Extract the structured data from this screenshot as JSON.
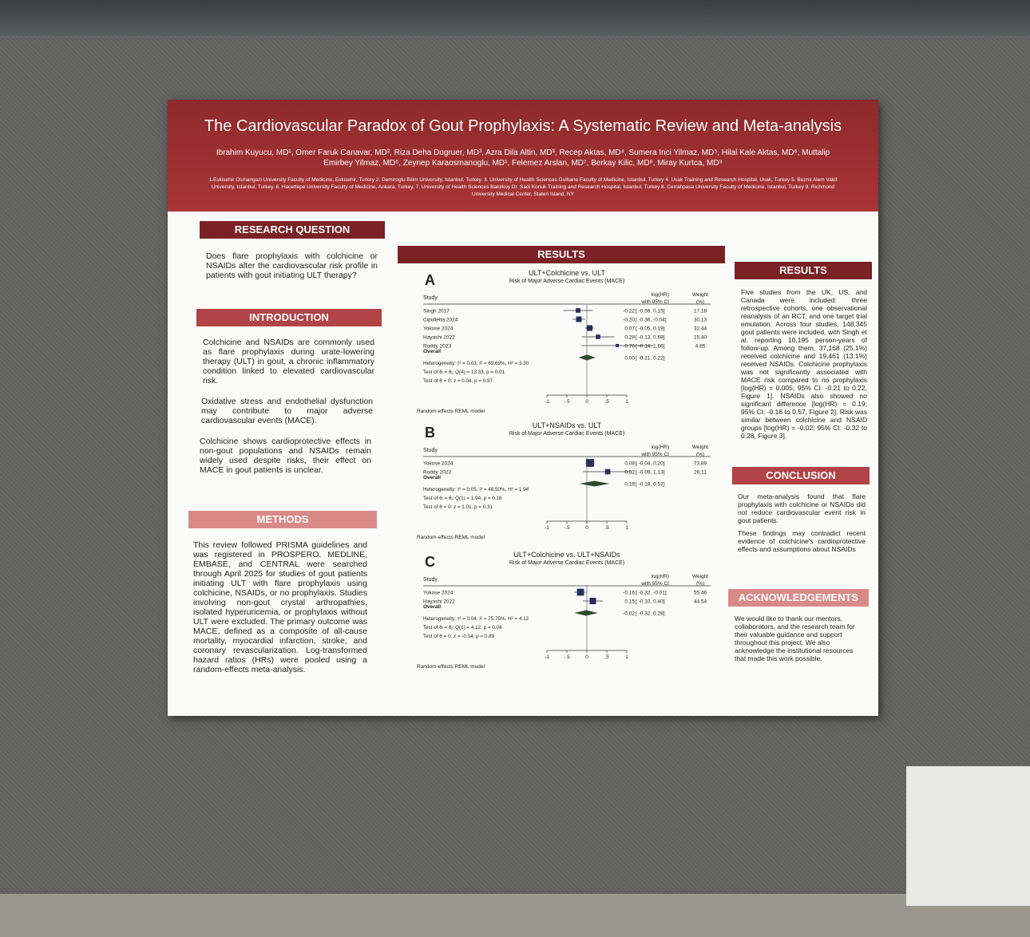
{
  "header": {
    "title": "The Cardiovascular Paradox of Gout Prophylaxis: A Systematic Review and Meta-analysis",
    "authors": "Ibrahim Kuyucu, MD¹, Omer Faruk Canavar, MD², Riza Deha Dogruer, MD³, Azra Dila Altin, MD³, Recep Aktas, MD⁴, Sumera Inci Yilmaz, MD⁵, Hilal Kale Aktas, MD⁶, Muttalip Emirbey Yilmaz, MD⁶, Zeynep Karaosmanoglu, MD¹, Felemez Arslan, MD⁷, Berkay Kilic, MD⁸, Miray Kurtca, MD⁹",
    "affiliations": "1.Eskisehir Osmangazi University Faculty of Medicine, Eskisehir, Turkey 2. Demiroglu Bilim University, Istanbul, Turkey. 3. University of Health Sciences Gulhane Faculty of Medicine, Istanbul, Turkey 4. Usak Training and Research Hospital, Usak, Turkey 5. Bezmi Alem Vakif University, Istanbul, Turkey. 6. Hacettepe University Faculty of Medicine, Ankara, Turkey. 7. University of Health Sciences Bakirkoy Dr. Sadi Konuk Training and Research Hospital, Istanbul, Turkey 8. Cerrahpasa University Faculty of Medicine, Istanbul, Turkey 9. Richmond University Medical Center, Staten Island, NY"
  },
  "research_question": {
    "heading": "RESEARCH QUESTION",
    "text": "Does flare prophylaxis with colchicine or NSAIDs alter the cardiovascular risk profile in patients with gout initiating ULT therapy?"
  },
  "introduction": {
    "heading": "INTRODUCTION",
    "paragraphs": [
      "Colchicine and NSAIDs are commonly used as flare prophylaxis during urate-lowering therapy (ULT) in gout, a chronic inflammatory condition linked to elevated cardiovascular risk.",
      "Oxidative stress and endothelial dysfunction may contribute to major adverse cardiovascular events (MACE).",
      "Colchicine shows cardioprotective effects in non-gout populations and NSAIDs remain widely used despite risks, their effect on MACE in gout patients is unclear."
    ]
  },
  "methods": {
    "heading": "METHODS",
    "text": "This review followed PRISMA guidelines and was registered in PROSPERO. MEDLINE, EMBASE, and CENTRAL were searched through April 2025 for studies of gout patients initiating ULT with flare prophylaxis using colchicine, NSAIDs, or no prophylaxis. Studies involving non-gout crystal arthropathies, isolated hyperuricemia, or prophylaxis without ULT were excluded. The primary outcome was MACE, defined as a composite of all-cause mortality, myocardial infarction, stroke, and coronary revascularization. Log-transformed hazard ratios (HRs) were pooled using a random-effects meta-analysis."
  },
  "results_plots": {
    "heading": "RESULTS",
    "plots": [
      {
        "label": "A",
        "title": "ULT+Colchicine vs. ULT",
        "subtitle": "Risk of Major Adverse Cardiac Events (MACE)",
        "col_study": "Study",
        "col_hr": [
          "log(HR)",
          "with 95% CI"
        ],
        "col_weight": [
          "Weight",
          "(%)"
        ],
        "rows": [
          {
            "study": "Singh 2017",
            "est": "-0.22",
            "ci": "[ -0.59,  0.15]",
            "lo": -0.59,
            "hi": 0.15,
            "weight": "17.18"
          },
          {
            "study": "Cipolletta 2024",
            "est": "-0.20",
            "ci": "[ -0.36, -0.04]",
            "lo": -0.36,
            "hi": -0.04,
            "weight": "30.13"
          },
          {
            "study": "Yokose 2024",
            "est": "0.07",
            "ci": "[ -0.05,  0.19]",
            "lo": -0.05,
            "hi": 0.19,
            "weight": "32.44"
          },
          {
            "study": "Hayashi 2022",
            "est": "0.28",
            "ci": "[ -0.13,  0.69]",
            "lo": -0.13,
            "hi": 0.69,
            "weight": "15.40"
          },
          {
            "study": "Roddy 2023",
            "est": "0.76",
            "ci": "[ -0.14,  1.66]",
            "lo": -0.14,
            "hi": 1.66,
            "weight": "4.85"
          }
        ],
        "overall": {
          "label": "Overall",
          "est": "0.00",
          "ci": "[ -0.21,  0.22]",
          "lo": -0.21,
          "hi": 0.22
        },
        "stats": [
          "Heterogeneity: τ² = 0.03, I² = 69.69%, H² = 3.30",
          "Test of θᵢ = θⱼ: Q(4) = 13.33, p = 0.01",
          "Test of θ = 0: z = 0.04, p = 0.97"
        ],
        "ticks": [
          "-1",
          "-.5",
          "0",
          ".5",
          "1"
        ],
        "footnote": "Random-effects REML model"
      },
      {
        "label": "B",
        "title": "ULT+NSAIDs vs. ULT",
        "subtitle": "Risk of Major Adverse Cardiac Events (MACE)",
        "col_study": "Study",
        "col_hr": [
          "log(HR)",
          "with 95% CI"
        ],
        "col_weight": [
          "Weight",
          "(%)"
        ],
        "rows": [
          {
            "study": "Yokose 2024",
            "est": "0.08",
            "ci": "[ -0.04,  0.20]",
            "lo": -0.04,
            "hi": 0.2,
            "weight": "73.89"
          },
          {
            "study": "Roddy 2023",
            "est": "0.52",
            "ci": "[ -0.09,  1.13]",
            "lo": -0.09,
            "hi": 1.13,
            "weight": "26.11"
          }
        ],
        "overall": {
          "label": "Overall",
          "est": "0.19",
          "ci": "[ -0.18,  0.57]",
          "lo": -0.18,
          "hi": 0.57
        },
        "stats": [
          "Heterogeneity: τ² = 0.05, I² = 48.50%, H² = 1.94",
          "Test of θᵢ = θⱼ: Q(1) = 1.94, p = 0.16",
          "Test of θ = 0: z = 1.01, p = 0.31"
        ],
        "ticks": [
          "-1",
          "-.5",
          "0",
          ".5",
          "1"
        ],
        "footnote": "Random-effects REML model"
      },
      {
        "label": "C",
        "title": "ULT+Colchicine vs. ULT+NSAIDs",
        "subtitle": "Risk of Major Adverse Cardiac Events (MACE)",
        "col_study": "Study",
        "col_hr": [
          "log(HR)",
          "with 95% CI"
        ],
        "col_weight": [
          "Weight",
          "(%)"
        ],
        "rows": [
          {
            "study": "Yokose 2024",
            "est": "-0.16",
            "ci": "[ -0.32, -0.01]",
            "lo": -0.32,
            "hi": -0.01,
            "weight": "55.46"
          },
          {
            "study": "Hayashi 2022",
            "est": "0.15",
            "ci": "[ -0.10,  0.40]",
            "lo": -0.1,
            "hi": 0.4,
            "weight": "44.54"
          }
        ],
        "overall": {
          "label": "Overall",
          "est": "-0.02",
          "ci": "[ -0.32,  0.28]",
          "lo": -0.32,
          "hi": 0.28
        },
        "stats": [
          "Heterogeneity: τ² = 0.04, I² = 75.75%, H² = 4.12",
          "Test of θᵢ = θⱼ: Q(1) = 4.12, p = 0.04",
          "Test of θ = 0: z = -0.14, p = 0.89"
        ],
        "ticks": [
          "-1",
          "-.5",
          "0",
          ".5",
          "1"
        ],
        "footnote": "Random-effects REML model"
      }
    ]
  },
  "results_text": {
    "heading": "RESULTS",
    "text": "Five studies from the UK, US, and Canada were included: three retrospective cohorts, one observational reanalysis of an RCT, and one target trial emulation. Across four studies, 148,345 gout patients were included, with Singh et al. reporting 10,195 person-years of follow-up. Among them, 37,168 (25.1%) received colchicine and 19,461 (13.1%) received NSAIDs. Colchicine prophylaxis was not significantly associated with MACE risk compared to no prophylaxis [log(HR) = 0.005; 95% CI: -0.21 to 0.22, Figure 1]. NSAIDs also showed no significant difference [log(HR) = 0.19; 95% CI: -0.18 to 0.57, Figure 2]. Risk was similar between colchicine and NSAID groups [log(HR) = -0.02; 95% CI: -0.32 to 0.28, Figure 3]."
  },
  "conclusion": {
    "heading": "CONCLUSION",
    "paragraphs": [
      "Our meta-analysis found that flare prophylaxis with colchicine or NSAIDs did not reduce cardiovascular event risk in gout patients.",
      "These findings may contradict recent evidence of colchicine's cardioprotective effects and assumptions about NSAIDs"
    ]
  },
  "acknowledgements": {
    "heading": "ACKNOWLEDGEMENTS",
    "text": "We would like to thank our mentors, collaborators, and the research team for their valuable guidance and support throughout this project. We also acknowledge the institutional resources that made this work possible."
  }
}
